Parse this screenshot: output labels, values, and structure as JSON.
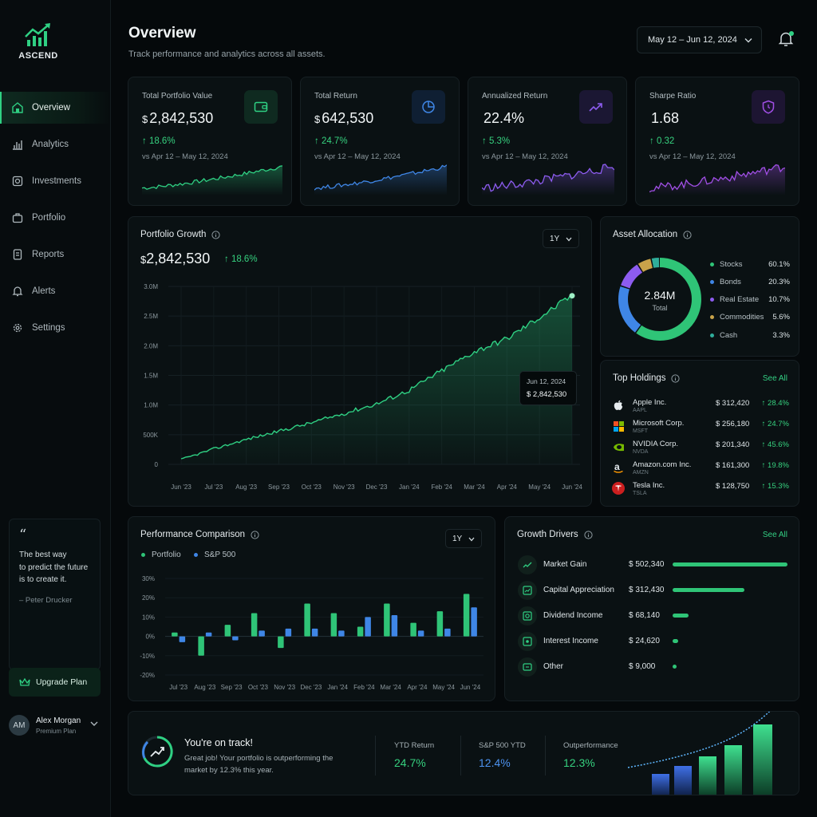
{
  "app": {
    "logo_text": "ASCEND"
  },
  "sidebar": {
    "items": [
      {
        "label": "Overview",
        "icon": "home-icon",
        "active": true
      },
      {
        "label": "Analytics",
        "icon": "bar-chart-icon"
      },
      {
        "label": "Investments",
        "icon": "investments-icon"
      },
      {
        "label": "Portfolio",
        "icon": "portfolio-icon"
      },
      {
        "label": "Reports",
        "icon": "document-icon"
      },
      {
        "label": "Alerts",
        "icon": "bell-icon"
      },
      {
        "label": "Settings",
        "icon": "gear-icon"
      }
    ],
    "quote": {
      "mark": "“",
      "line1": "The best way",
      "line2": "to predict the future",
      "line3": "is to create it.",
      "author": "– Peter Drucker"
    },
    "upgrade_label": "Upgrade Plan",
    "user": {
      "initials": "AM",
      "name": "Alex Morgan",
      "plan": "Premium Plan"
    }
  },
  "header": {
    "title": "Overview",
    "subtitle": "Track performance and analytics across all assets.",
    "date_range": "May 12 – Jun 12, 2024"
  },
  "kpis": [
    {
      "label": "Total Portfolio Value",
      "currency": "$",
      "value": "2,842,530",
      "change": "↑ 18.6%",
      "compare": "vs Apr 12 – May 12, 2024",
      "icon": "wallet-icon",
      "color": "#2fd083"
    },
    {
      "label": "Total Return",
      "currency": "$",
      "value": "642,530",
      "change": "↑ 24.7%",
      "compare": "vs Apr 12 – May 12, 2024",
      "icon": "pie-chart-icon",
      "color": "#3f86e6"
    },
    {
      "label": "Annualized Return",
      "currency": "",
      "value": "22.4%",
      "change": "↑ 5.3%",
      "compare": "vs Apr 12 – May 12, 2024",
      "icon": "trend-up-icon",
      "color": "#8d5cf0"
    },
    {
      "label": "Sharpe Ratio",
      "currency": "",
      "value": "1.68",
      "change": "↑ 0.32",
      "compare": "vs Apr 12 – May 12, 2024",
      "icon": "shield-icon",
      "color": "#a14fe6"
    }
  ],
  "portfolio_growth": {
    "title": "Portfolio Growth",
    "currency": "$",
    "value": "2,842,530",
    "change": "↑ 18.6%",
    "period": "1Y",
    "tooltip": {
      "date": "Jun 12, 2024",
      "value": "$ 2,842,530"
    },
    "chart_data": {
      "type": "area",
      "title": "Portfolio Growth",
      "categories": [
        "Jun '23",
        "Jul '23",
        "Aug '23",
        "Sep '23",
        "Oct '23",
        "Nov '23",
        "Dec '23",
        "Jan '24",
        "Feb '24",
        "Mar '24",
        "Apr '24",
        "May '24",
        "Jun '24"
      ],
      "y_ticks": [
        "3.0M",
        "2.5M",
        "2.0M",
        "1.5M",
        "1.0M",
        "500K",
        "0"
      ],
      "ylim": [
        0,
        3000000
      ],
      "values": [
        80000,
        260000,
        420000,
        560000,
        700000,
        860000,
        1020000,
        1250000,
        1580000,
        1900000,
        2120000,
        2480000,
        2842530
      ],
      "color": "#2fd083"
    }
  },
  "asset_allocation": {
    "title": "Asset Allocation",
    "total_value": "2.84M",
    "total_label": "Total",
    "chart_data": {
      "type": "pie",
      "labels": [
        "Stocks",
        "Bonds",
        "Real Estate",
        "Commodities",
        "Cash"
      ],
      "values": [
        60.1,
        20.3,
        10.7,
        5.6,
        3.3
      ],
      "display": [
        "60.1%",
        "20.3%",
        "10.7%",
        "5.6%",
        "3.3%"
      ],
      "colors": [
        "#2fc477",
        "#3f86e6",
        "#8d5cf0",
        "#c9a34a",
        "#2fae9b"
      ]
    }
  },
  "top_holdings": {
    "title": "Top Holdings",
    "see_all": "See All",
    "items": [
      {
        "name": "Apple Inc.",
        "ticker": "AAPL",
        "value": "$ 312,420",
        "change": "↑ 28.4%",
        "icon": "apple-logo-icon"
      },
      {
        "name": "Microsoft Corp.",
        "ticker": "MSFT",
        "value": "$ 256,180",
        "change": "↑ 24.7%",
        "icon": "microsoft-logo-icon"
      },
      {
        "name": "NVIDIA Corp.",
        "ticker": "NVDA",
        "value": "$ 201,340",
        "change": "↑ 45.6%",
        "icon": "nvidia-logo-icon"
      },
      {
        "name": "Amazon.com Inc.",
        "ticker": "AMZN",
        "value": "$ 161,300",
        "change": "↑ 19.8%",
        "icon": "amazon-logo-icon"
      },
      {
        "name": "Tesla Inc.",
        "ticker": "TSLA",
        "value": "$ 128,750",
        "change": "↑ 15.3%",
        "icon": "tesla-logo-icon"
      }
    ]
  },
  "performance": {
    "title": "Performance Comparison",
    "period": "1Y",
    "chart_data": {
      "type": "bar",
      "title": "Performance Comparison",
      "categories": [
        "Jul '23",
        "Aug '23",
        "Sep '23",
        "Oct '23",
        "Nov '23",
        "Dec '23",
        "Jan '24",
        "Feb '24",
        "Mar '24",
        "Apr '24",
        "May '24",
        "Jun '24"
      ],
      "y_ticks": [
        "30%",
        "20%",
        "10%",
        "0%",
        "-10%",
        "-20%"
      ],
      "ylim": [
        -20,
        30
      ],
      "series": [
        {
          "name": "Portfolio",
          "color": "#2fc477",
          "values": [
            2,
            -10,
            6,
            12,
            -6,
            17,
            12,
            5,
            17,
            7,
            13,
            22
          ]
        },
        {
          "name": "S&P 500",
          "color": "#3f86e6",
          "values": [
            -3,
            2,
            -2,
            3,
            4,
            4,
            3,
            10,
            11,
            3,
            4,
            15
          ]
        }
      ]
    }
  },
  "growth_drivers": {
    "title": "Growth Drivers",
    "see_all": "See All",
    "items": [
      {
        "label": "Market Gain",
        "value": "$ 502,340",
        "amount": 502340,
        "icon": "chart-up-icon"
      },
      {
        "label": "Capital Appreciation",
        "value": "$ 312,430",
        "amount": 312430,
        "icon": "growth-icon"
      },
      {
        "label": "Dividend Income",
        "value": "$ 68,140",
        "amount": 68140,
        "icon": "dividend-icon"
      },
      {
        "label": "Interest Income",
        "value": "$ 24,620",
        "amount": 24620,
        "icon": "interest-icon"
      },
      {
        "label": "Other",
        "value": "$ 9,000",
        "amount": 9000,
        "icon": "other-icon"
      }
    ]
  },
  "on_track": {
    "title": "You're on track!",
    "line1": "Great job! Your portfolio is outperforming the",
    "line2": "market by 12.3% this year.",
    "stats": [
      {
        "label": "YTD Return",
        "value": "24.7%",
        "color": "#36d17f"
      },
      {
        "label": "S&P 500 YTD",
        "value": "12.4%",
        "color": "#4d93f0"
      },
      {
        "label": "Outperformance",
        "value": "12.3%",
        "color": "#36d17f"
      }
    ]
  }
}
